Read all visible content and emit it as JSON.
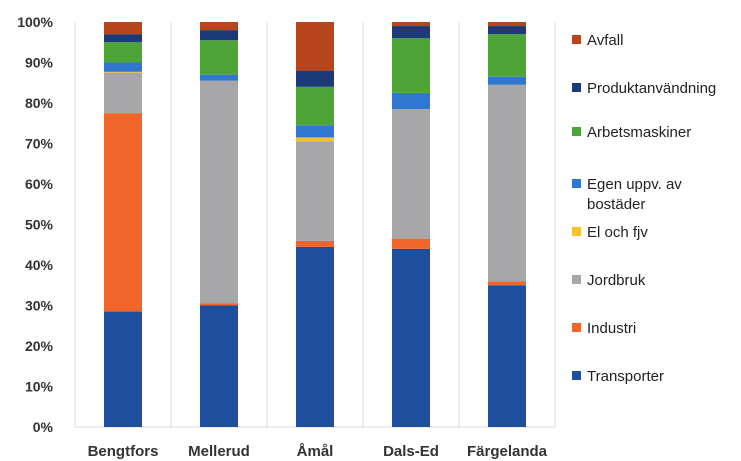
{
  "chart_data": {
    "type": "bar",
    "stacked": true,
    "percent": true,
    "title": "",
    "xlabel": "",
    "ylabel": "",
    "ylim": [
      0,
      100
    ],
    "yticks": [
      "0%",
      "10%",
      "20%",
      "30%",
      "40%",
      "50%",
      "60%",
      "70%",
      "80%",
      "90%",
      "100%"
    ],
    "grid": "vertical-light",
    "legend_position": "right",
    "categories": [
      "Bengtfors",
      "Mellerud",
      "Åmål",
      "Dals-Ed",
      "Färgelanda"
    ],
    "series": [
      {
        "name": "Transporter",
        "color": "#1f4e9c",
        "values": [
          28.5,
          30.0,
          44.5,
          44.0,
          35.0
        ]
      },
      {
        "name": "Industri",
        "color": "#f0652a",
        "values": [
          49.0,
          0.5,
          1.5,
          2.5,
          1.0
        ]
      },
      {
        "name": "Jordbruk",
        "color": "#a7a7a9",
        "values": [
          10.0,
          55.0,
          24.5,
          32.0,
          48.5
        ]
      },
      {
        "name": "El och fjv",
        "color": "#f6c12d",
        "values": [
          0.2,
          0.0,
          1.0,
          0.0,
          0.0
        ]
      },
      {
        "name": "Egen uppv. av bostäder",
        "color": "#3077d1",
        "values": [
          2.3,
          1.5,
          3.0,
          4.0,
          2.0
        ]
      },
      {
        "name": "Arbetsmaskiner",
        "color": "#4ea436",
        "values": [
          5.0,
          8.5,
          9.5,
          13.5,
          10.5
        ]
      },
      {
        "name": "Produktanvändning",
        "color": "#1c3a78",
        "values": [
          2.0,
          2.5,
          4.0,
          3.0,
          2.0
        ]
      },
      {
        "name": "Avfall",
        "color": "#b8451c",
        "values": [
          3.0,
          2.0,
          12.0,
          1.0,
          1.0
        ]
      }
    ],
    "legend_order": [
      "Avfall",
      "Produktanvändning",
      "Arbetsmaskiner",
      "Egen uppv. av bostäder",
      "El och fjv",
      "Jordbruk",
      "Industri",
      "Transporter"
    ]
  }
}
